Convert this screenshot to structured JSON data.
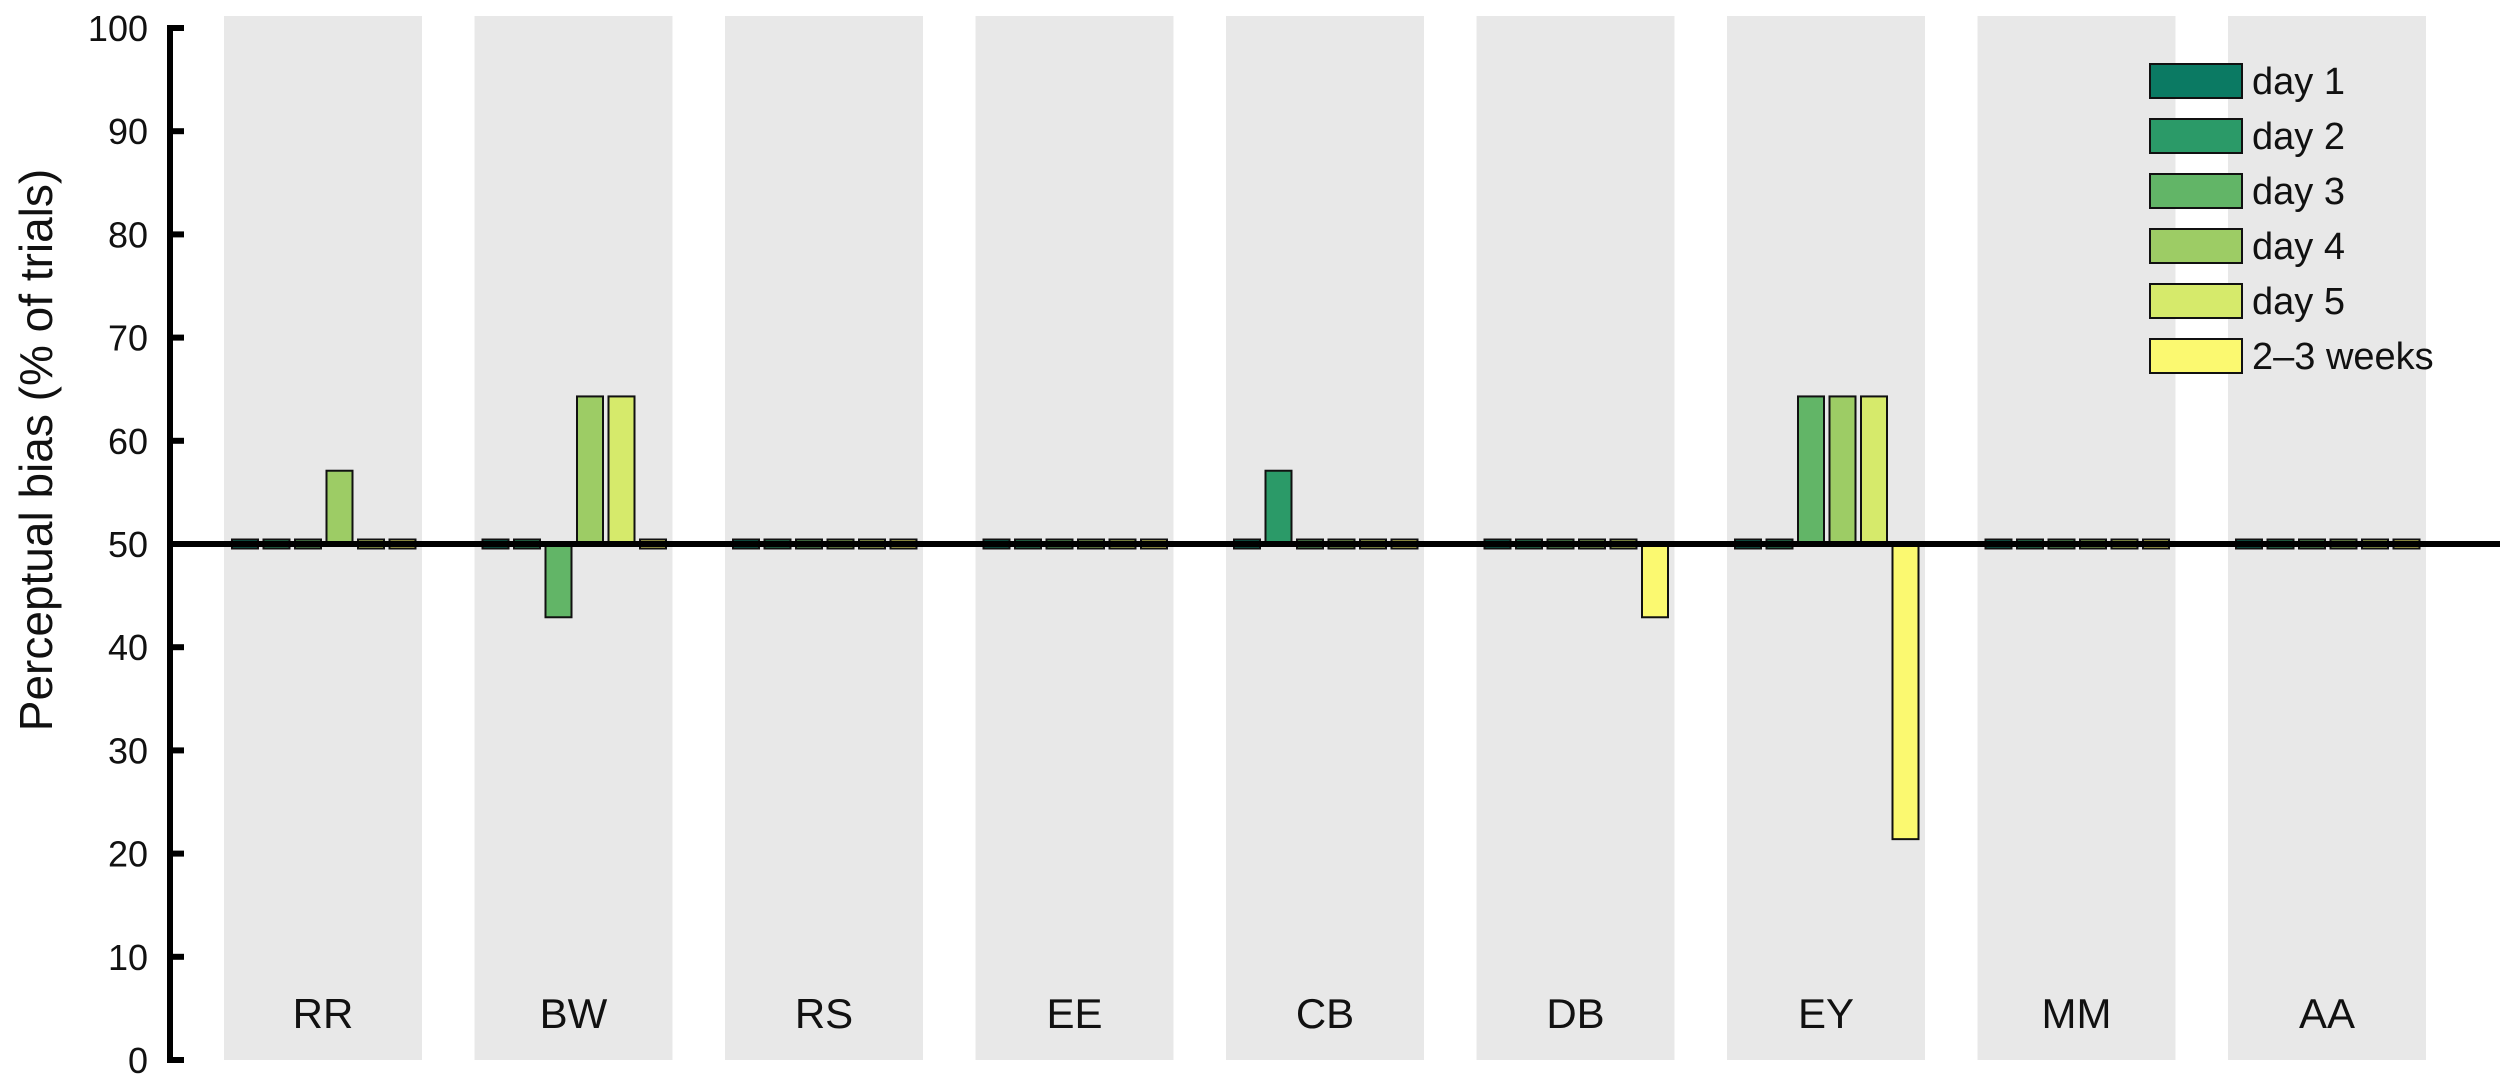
{
  "chart_data": {
    "type": "bar",
    "title": "",
    "xlabel": "",
    "ylabel": "Perceptual bias (% of trials)",
    "ylim": [
      0,
      100
    ],
    "yticks": [
      0,
      10,
      20,
      30,
      40,
      50,
      60,
      70,
      80,
      90,
      100
    ],
    "baseline": 50,
    "grid": false,
    "legend_position": "top-right",
    "categories": [
      "RR",
      "BW",
      "RS",
      "EE",
      "CB",
      "DB",
      "EY",
      "MM",
      "AA"
    ],
    "series": [
      {
        "name": "day 1",
        "color": "#0b7a63",
        "values": [
          50,
          50,
          50,
          50,
          50,
          50,
          50,
          50,
          50
        ]
      },
      {
        "name": "day 2",
        "color": "#2b9a68",
        "values": [
          50,
          50,
          50,
          50,
          57.1,
          50,
          50,
          50,
          50
        ]
      },
      {
        "name": "day 3",
        "color": "#62b567",
        "values": [
          50,
          42.9,
          50,
          50,
          50,
          50,
          64.3,
          50,
          50
        ]
      },
      {
        "name": "day 4",
        "color": "#9dcc65",
        "values": [
          57.1,
          64.3,
          50,
          50,
          50,
          50,
          64.3,
          50,
          50
        ]
      },
      {
        "name": "day 5",
        "color": "#d6ea6b",
        "values": [
          50,
          64.3,
          50,
          50,
          50,
          50,
          64.3,
          50,
          50
        ]
      },
      {
        "name": "2–3 weeks",
        "color": "#fbf970",
        "values": [
          50,
          50,
          50,
          50,
          50,
          42.9,
          21.4,
          50,
          50
        ]
      }
    ],
    "background_color": "#e8e8e8"
  }
}
